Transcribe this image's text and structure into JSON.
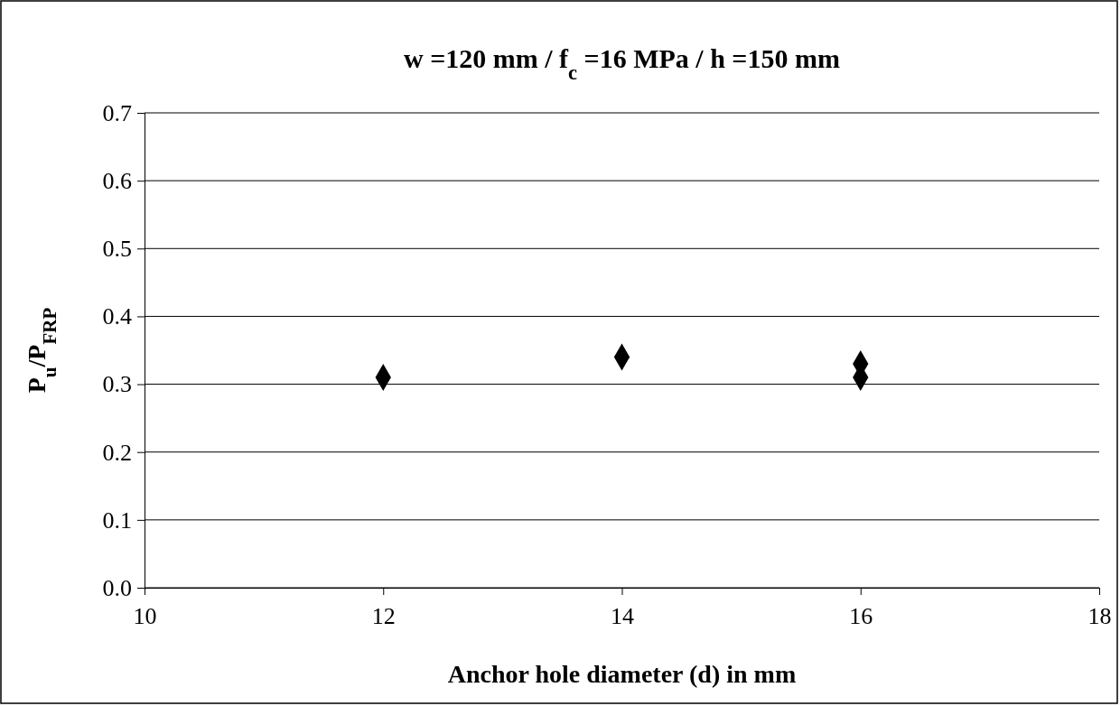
{
  "chart_data": {
    "type": "scatter",
    "title": "w =120 mm / f$_{c}$ =16 MPa / h =150 mm",
    "xlabel": "Anchor hole diameter (d) in mm",
    "ylabel": "P$_{u}$/P$_{FRP}$",
    "x": [
      12,
      14,
      16,
      16
    ],
    "values": [
      0.31,
      0.34,
      0.33,
      0.31
    ],
    "color": "#000000",
    "marker": "diamond",
    "xlim": [
      10,
      18
    ],
    "xticks": [
      10,
      12,
      14,
      16,
      18
    ],
    "ylim": [
      0,
      0.7
    ],
    "yticks": [
      {
        "value": 0,
        "label": "0.0"
      },
      {
        "value": 0.1,
        "label": "0.1"
      },
      {
        "value": 0.2,
        "label": "0.2"
      },
      {
        "value": 0.3,
        "label": "0.3"
      },
      {
        "value": 0.4,
        "label": "0.4"
      },
      {
        "value": 0.5,
        "label": "0.5"
      },
      {
        "value": 0.6,
        "label": "0.6"
      },
      {
        "value": 0.7,
        "label": "0.7"
      }
    ],
    "grid": "y"
  }
}
